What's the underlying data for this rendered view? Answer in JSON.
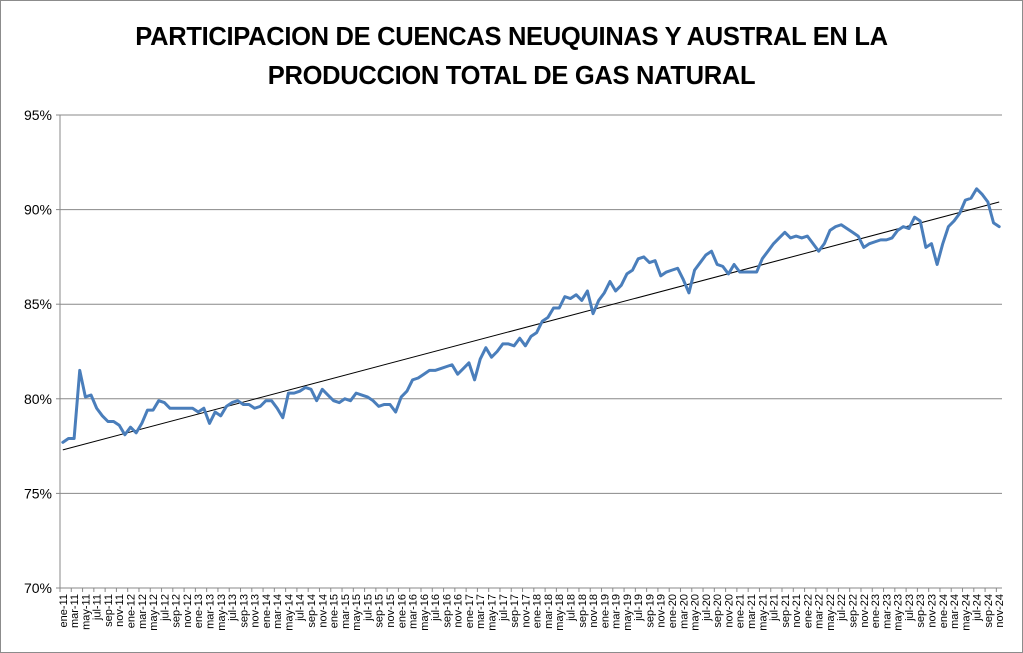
{
  "chart_data": {
    "type": "line",
    "title_lines": [
      "PARTICIPACION DE CUENCAS NEUQUINAS Y AUSTRAL EN LA",
      "PRODUCCION TOTAL DE GAS NATURAL"
    ],
    "xlabel": "",
    "ylabel": "",
    "ylim": [
      0.7,
      0.95
    ],
    "y_ticks": [
      "70%",
      "75%",
      "80%",
      "85%",
      "90%",
      "95%"
    ],
    "y_tick_values": [
      0.7,
      0.75,
      0.8,
      0.85,
      0.9,
      0.95
    ],
    "grid": true,
    "legend": "none",
    "tick_labels": [
      "ene-11",
      "mar-11",
      "may-11",
      "jul-11",
      "sep-11",
      "nov-11",
      "ene-12",
      "mar-12",
      "may-12",
      "jul-12",
      "sep-12",
      "nov-12",
      "ene-13",
      "mar-13",
      "may-13",
      "jul-13",
      "sep-13",
      "nov-13",
      "ene-14",
      "mar-14",
      "may-14",
      "jul-14",
      "sep-14",
      "nov-14",
      "ene-15",
      "mar-15",
      "may-15",
      "jul-15",
      "sep-15",
      "nov-15",
      "ene-16",
      "mar-16",
      "may-16",
      "jul-16",
      "sep-16",
      "nov-16",
      "ene-17",
      "mar-17",
      "may-17",
      "jul-17",
      "sep-17",
      "nov-17",
      "ene-18",
      "mar-18",
      "may-18",
      "jul-18",
      "sep-18",
      "nov-18",
      "ene-19",
      "mar-19",
      "may-19",
      "jul-19",
      "sep-19",
      "nov-19",
      "ene-20",
      "mar-20",
      "may-20",
      "jul-20",
      "sep-20",
      "nov-20",
      "ene-21",
      "mar-21",
      "may-21",
      "jul-21",
      "sep-21",
      "nov-21",
      "ene-22",
      "mar-22",
      "may-22",
      "jul-22",
      "sep-22",
      "nov-22",
      "ene-23",
      "mar-23",
      "may-23",
      "jul-23",
      "sep-23",
      "nov-23",
      "ene-24",
      "mar-24",
      "may-24",
      "jul-24",
      "sep-24",
      "nov-24"
    ],
    "series": [
      {
        "color": "#4a7ebb",
        "values": [
          0.777,
          0.779,
          0.779,
          0.815,
          0.801,
          0.802,
          0.795,
          0.791,
          0.788,
          0.788,
          0.786,
          0.781,
          0.785,
          0.782,
          0.787,
          0.794,
          0.794,
          0.799,
          0.798,
          0.795,
          0.795,
          0.795,
          0.795,
          0.795,
          0.793,
          0.795,
          0.787,
          0.793,
          0.791,
          0.796,
          0.798,
          0.799,
          0.797,
          0.797,
          0.795,
          0.796,
          0.799,
          0.799,
          0.795,
          0.79,
          0.803,
          0.803,
          0.804,
          0.806,
          0.805,
          0.799,
          0.805,
          0.802,
          0.799,
          0.798,
          0.8,
          0.799,
          0.803,
          0.802,
          0.801,
          0.799,
          0.796,
          0.797,
          0.797,
          0.793,
          0.801,
          0.804,
          0.81,
          0.811,
          0.813,
          0.815,
          0.815,
          0.816,
          0.817,
          0.818,
          0.813,
          0.816,
          0.819,
          0.81,
          0.821,
          0.827,
          0.822,
          0.825,
          0.829,
          0.829,
          0.828,
          0.832,
          0.828,
          0.833,
          0.835,
          0.841,
          0.843,
          0.848,
          0.848,
          0.854,
          0.853,
          0.855,
          0.852,
          0.857,
          0.845,
          0.852,
          0.856,
          0.862,
          0.857,
          0.86,
          0.866,
          0.868,
          0.874,
          0.875,
          0.872,
          0.873,
          0.865,
          0.867,
          0.868,
          0.869,
          0.863,
          0.856,
          0.868,
          0.872,
          0.876,
          0.878,
          0.871,
          0.87,
          0.866,
          0.871,
          0.867,
          0.867,
          0.867,
          0.867,
          0.874,
          0.878,
          0.882,
          0.885,
          0.888,
          0.885,
          0.886,
          0.885,
          0.886,
          0.882,
          0.878,
          0.882,
          0.889,
          0.891,
          0.892,
          0.89,
          0.888,
          0.886,
          0.88,
          0.882,
          0.883,
          0.884,
          0.884,
          0.885,
          0.889,
          0.891,
          0.89,
          0.896,
          0.894,
          0.88,
          0.882,
          0.871,
          0.882,
          0.891,
          0.894,
          0.898,
          0.905,
          0.906,
          0.911,
          0.908,
          0.904,
          0.893,
          0.891
        ]
      }
    ],
    "trendline": {
      "type": "linear",
      "color": "#000000",
      "start": 0.773,
      "end": 0.904
    }
  }
}
